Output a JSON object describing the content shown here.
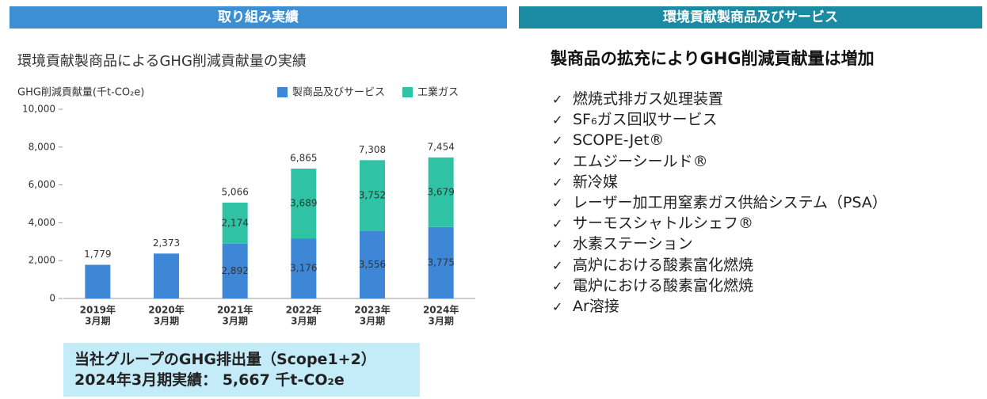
{
  "left_header": "取り組み実績",
  "right_header": "環境貢献製商品及びサービス",
  "chart_data": {
    "type": "stacked_bar",
    "title": "環境貢献製商品によるGHG削減貢献量の実績",
    "y_label": "GHG削減貢献量(千t-CO₂e)",
    "categories": [
      [
        "2019年",
        "3月期"
      ],
      [
        "2020年",
        "3月期"
      ],
      [
        "2021年",
        "3月期"
      ],
      [
        "2022年",
        "3月期"
      ],
      [
        "2023年",
        "3月期"
      ],
      [
        "2024年",
        "3月期"
      ]
    ],
    "series": [
      {
        "name": "製商品及びサービス",
        "color": "#3d87d6",
        "values": [
          1779,
          2373,
          2892,
          3176,
          3556,
          3775
        ],
        "value_labels": [
          null,
          null,
          "2,892",
          "3,176",
          "3,556",
          "3,775"
        ]
      },
      {
        "name": "工業ガス",
        "color": "#30c2a4",
        "values": [
          null,
          null,
          2174,
          3689,
          3752,
          3679
        ],
        "value_labels": [
          null,
          null,
          "2,174",
          "3,689",
          "3,752",
          "3,679"
        ]
      }
    ],
    "totals": [
      1779,
      2373,
      5066,
      6865,
      7308,
      7454
    ],
    "total_labels": [
      "1,779",
      "2,373",
      "5,066",
      "6,865",
      "7,308",
      "7,454"
    ],
    "ylim": [
      0,
      10000
    ],
    "yticks": [
      0,
      {
        "value": 2000,
        "label": "2,000"
      },
      {
        "value": 4000,
        "label": "4,000"
      },
      {
        "value": 6000,
        "label": "6,000"
      },
      {
        "value": 8000,
        "label": "8,000"
      },
      {
        "value": 10000,
        "label": "10,000"
      }
    ],
    "legend": "top-right"
  },
  "summary_box": [
    "当社グループのGHG排出量（Scope1+2）",
    "2024年3月期実績： 5,667 千t-CO₂e"
  ],
  "right_title": "製商品の拡充によりGHG削減貢献量は増加",
  "items": [
    "燃焼式排ガス処理装置",
    "SF₆ガス回収サービス",
    "SCOPE-Jet®",
    "エムジーシールド®",
    "新冷媒",
    "レーザー加工用窒素ガス供給システム（PSA）",
    "サーモスシャトルシェフ®",
    "水素ステーション",
    "高炉における酸素富化燃焼",
    "電炉における酸素富化燃焼",
    "Ar溶接"
  ]
}
